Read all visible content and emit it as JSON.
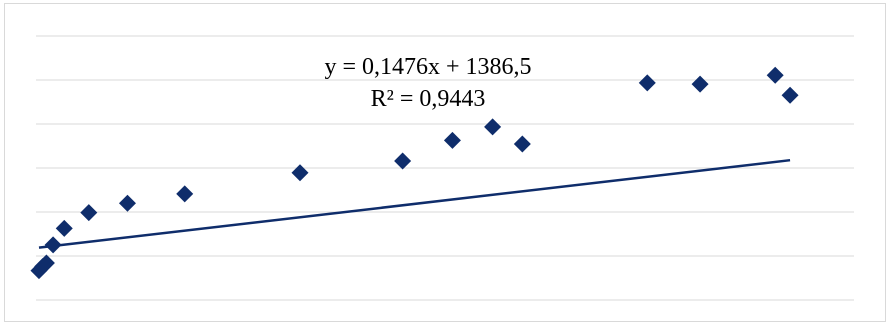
{
  "chart_data": {
    "type": "scatter",
    "title": "",
    "xlabel": "",
    "ylabel": "",
    "grid": true,
    "legend": "none",
    "marker": "diamond",
    "colors": {
      "points": "#0f2d6b",
      "trendline": "#0f2d6b",
      "grid": "#d9d9d9"
    },
    "x": [
      40,
      90,
      140,
      230,
      380,
      710,
      1230,
      2000,
      3550,
      4930,
      5600,
      6140,
      6540,
      8220,
      8930,
      9940,
      10140
    ],
    "y": [
      1000,
      1070,
      1130,
      1440,
      1720,
      1990,
      2150,
      2310,
      2670,
      2870,
      3220,
      3450,
      3160,
      4200,
      4180,
      4330,
      3990
    ],
    "trendline": {
      "type": "linear",
      "slope": 0.1476,
      "intercept": 1386.5,
      "equation_label": "y = 0,1476x + 1386,5",
      "r2_label": "R² = 0,9443"
    }
  }
}
